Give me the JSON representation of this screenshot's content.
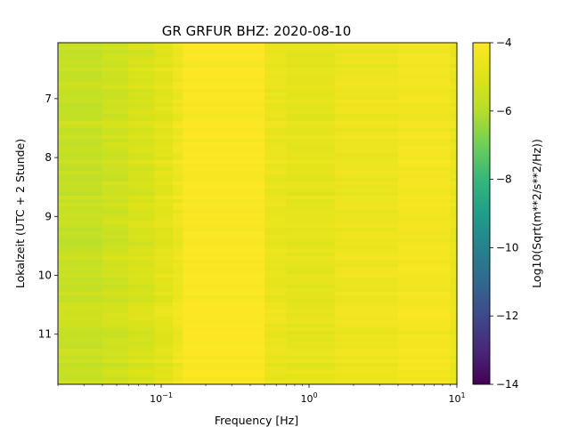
{
  "chart_data": {
    "type": "heatmap",
    "title": "GR GRFUR  BHZ: 2020-08-10",
    "xlabel": "Frequency [Hz]",
    "ylabel": "Lokalzeit (UTC + 2 Stunde)",
    "colorbar_label": "Log10(Sqrt(m**2/s**2/Hz))",
    "x_scale": "log",
    "xlim": [
      0.02,
      10
    ],
    "x_ticks": [
      {
        "value": 0.1,
        "base": "10",
        "exp": "−1"
      },
      {
        "value": 1,
        "base": "10",
        "exp": "0"
      },
      {
        "value": 10,
        "base": "10",
        "exp": "1"
      }
    ],
    "ylim": [
      6.05,
      11.85
    ],
    "y_inverted": true,
    "y_ticks": [
      "7",
      "8",
      "9",
      "10",
      "11"
    ],
    "clim": [
      -14,
      -4
    ],
    "colorbar_ticks": [
      "−4",
      "−6",
      "−8",
      "−10",
      "−12",
      "−14"
    ],
    "colorbar_tick_values": [
      -4,
      -6,
      -8,
      -10,
      -12,
      -14
    ],
    "colormap": "viridis",
    "frequency_bands": [
      {
        "f_low": 0.02,
        "f_high": 0.04,
        "value": -5.55
      },
      {
        "f_low": 0.04,
        "f_high": 0.06,
        "value": -5.35
      },
      {
        "f_low": 0.06,
        "f_high": 0.09,
        "value": -5.1
      },
      {
        "f_low": 0.09,
        "f_high": 0.12,
        "value": -4.8
      },
      {
        "f_low": 0.12,
        "f_high": 0.14,
        "value": -4.45
      },
      {
        "f_low": 0.14,
        "f_high": 0.5,
        "value": -4.05
      },
      {
        "f_low": 0.5,
        "f_high": 0.7,
        "value": -4.6
      },
      {
        "f_low": 0.7,
        "f_high": 1.5,
        "value": -4.75
      },
      {
        "f_low": 1.5,
        "f_high": 4,
        "value": -4.5
      },
      {
        "f_low": 4,
        "f_high": 9,
        "value": -4.3
      },
      {
        "f_low": 9,
        "f_high": 10,
        "value": -4.6
      }
    ]
  }
}
